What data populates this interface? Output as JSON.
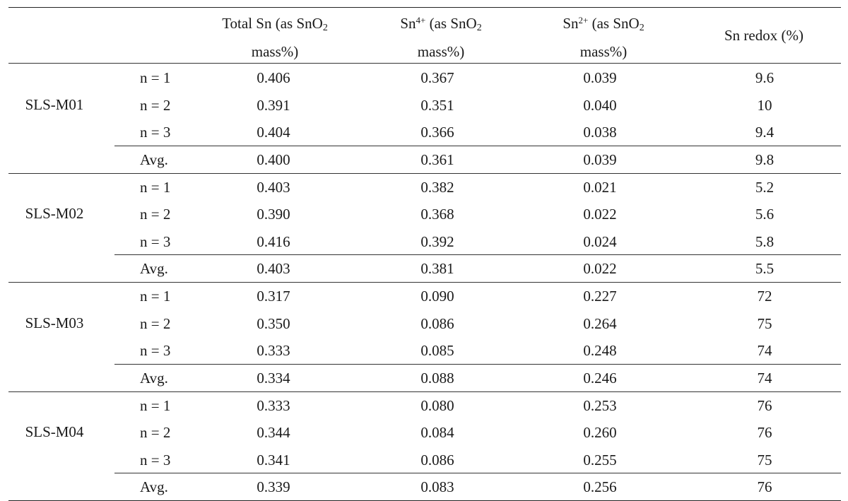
{
  "columns": {
    "total_sn": {
      "line1_pre": "Total Sn (as SnO",
      "line1_sub": "2",
      "line2": "mass%)"
    },
    "sn4": {
      "base": "Sn",
      "sup": "4+",
      "line1_rest": " (as SnO",
      "line1_sub": "2",
      "line2": "mass%)"
    },
    "sn2": {
      "base": "Sn",
      "sup": "2+",
      "line1_rest": " (as SnO",
      "line1_sub": "2",
      "line2": "mass%)"
    },
    "redox": "Sn redox (%)"
  },
  "groups": [
    {
      "sample": "SLS-M01",
      "rows": [
        {
          "run": "n = 1",
          "total": "0.406",
          "sn4": "0.367",
          "sn2": "0.039",
          "redox": "9.6"
        },
        {
          "run": "n = 2",
          "total": "0.391",
          "sn4": "0.351",
          "sn2": "0.040",
          "redox": "10"
        },
        {
          "run": "n = 3",
          "total": "0.404",
          "sn4": "0.366",
          "sn2": "0.038",
          "redox": "9.4"
        }
      ],
      "avg": {
        "run": "Avg.",
        "total": "0.400",
        "sn4": "0.361",
        "sn2": "0.039",
        "redox": "9.8"
      }
    },
    {
      "sample": "SLS-M02",
      "rows": [
        {
          "run": "n = 1",
          "total": "0.403",
          "sn4": "0.382",
          "sn2": "0.021",
          "redox": "5.2"
        },
        {
          "run": "n = 2",
          "total": "0.390",
          "sn4": "0.368",
          "sn2": "0.022",
          "redox": "5.6"
        },
        {
          "run": "n = 3",
          "total": "0.416",
          "sn4": "0.392",
          "sn2": "0.024",
          "redox": "5.8"
        }
      ],
      "avg": {
        "run": "Avg.",
        "total": "0.403",
        "sn4": "0.381",
        "sn2": "0.022",
        "redox": "5.5"
      }
    },
    {
      "sample": "SLS-M03",
      "rows": [
        {
          "run": "n = 1",
          "total": "0.317",
          "sn4": "0.090",
          "sn2": "0.227",
          "redox": "72"
        },
        {
          "run": "n = 2",
          "total": "0.350",
          "sn4": "0.086",
          "sn2": "0.264",
          "redox": "75"
        },
        {
          "run": "n = 3",
          "total": "0.333",
          "sn4": "0.085",
          "sn2": "0.248",
          "redox": "74"
        }
      ],
      "avg": {
        "run": "Avg.",
        "total": "0.334",
        "sn4": "0.088",
        "sn2": "0.246",
        "redox": "74"
      }
    },
    {
      "sample": "SLS-M04",
      "rows": [
        {
          "run": "n = 1",
          "total": "0.333",
          "sn4": "0.080",
          "sn2": "0.253",
          "redox": "76"
        },
        {
          "run": "n = 2",
          "total": "0.344",
          "sn4": "0.084",
          "sn2": "0.260",
          "redox": "76"
        },
        {
          "run": "n = 3",
          "total": "0.341",
          "sn4": "0.086",
          "sn2": "0.255",
          "redox": "75"
        }
      ],
      "avg": {
        "run": "Avg.",
        "total": "0.339",
        "sn4": "0.083",
        "sn2": "0.256",
        "redox": "76"
      }
    }
  ]
}
